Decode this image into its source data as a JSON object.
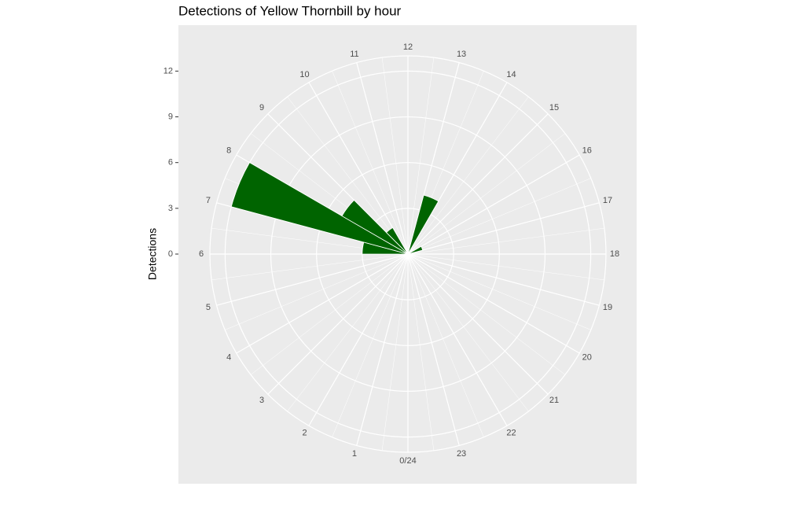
{
  "chart_data": {
    "type": "polar-bar",
    "title": "Detections of Yellow Thornbill by hour",
    "y_label": "Detections",
    "categories": [
      "0/24",
      "1",
      "2",
      "3",
      "4",
      "5",
      "6",
      "7",
      "8",
      "9",
      "10",
      "11",
      "12",
      "13",
      "14",
      "15",
      "16",
      "17",
      "18",
      "19",
      "20",
      "21",
      "22",
      "23"
    ],
    "values": [
      0,
      0,
      0,
      0,
      0,
      0,
      3,
      12,
      5,
      2,
      0,
      0,
      0,
      4,
      0,
      0,
      1,
      0,
      0,
      0,
      0,
      0,
      0,
      0
    ],
    "color": "#006400",
    "ylim": [
      0,
      13
    ],
    "yticks": [
      0,
      3,
      6,
      9,
      12
    ],
    "grid": true
  }
}
